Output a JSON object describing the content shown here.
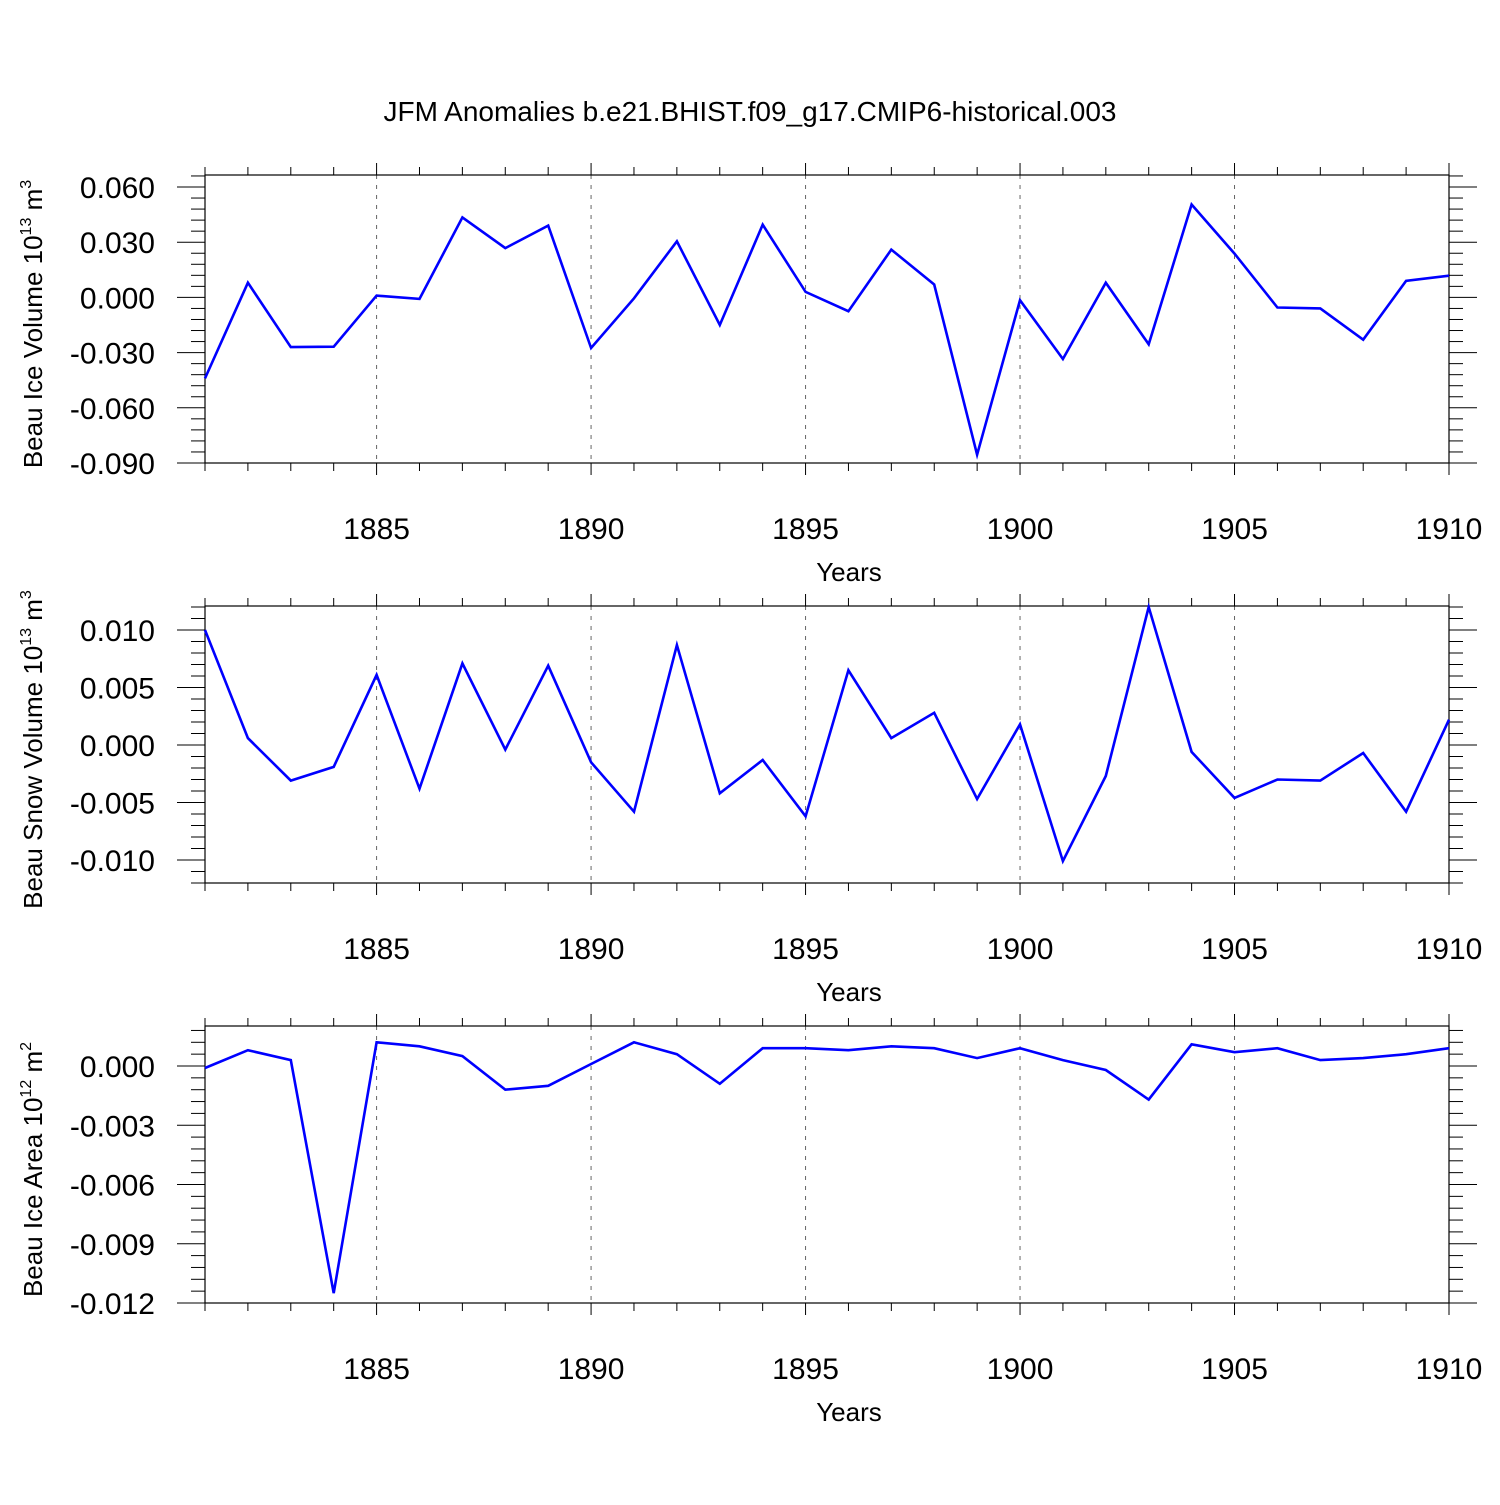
{
  "title": "JFM Anomalies b.e21.BHIST.f09_g17.CMIP6-historical.003",
  "colors": {
    "line": "#0000ff",
    "axis": "#000000",
    "grid": "#666666"
  },
  "chart_data": [
    {
      "type": "line",
      "ylabel_main": "Beau Ice Volume 10",
      "ylabel_sup1": "13",
      "ylabel_mid": " m",
      "ylabel_sup2": "3",
      "xlabel": "Years",
      "xlim": [
        1881,
        1910
      ],
      "ylim": [
        -0.09,
        0.072
      ],
      "yticks": [
        -0.09,
        -0.06,
        -0.03,
        0.0,
        0.03,
        0.06
      ],
      "ytick_labels": [
        "-0.090",
        "-0.060",
        "-0.030",
        "0.000",
        "0.030",
        "0.060"
      ],
      "xticks": [
        1885,
        1890,
        1895,
        1900,
        1905,
        1910
      ],
      "xtick_labels": [
        "1885",
        "1890",
        "1895",
        "1900",
        "1905",
        "1910"
      ],
      "x": [
        1881,
        1882,
        1883,
        1884,
        1885,
        1886,
        1887,
        1888,
        1889,
        1890,
        1891,
        1892,
        1893,
        1894,
        1895,
        1896,
        1897,
        1898,
        1899,
        1900,
        1901,
        1902,
        1903,
        1904,
        1905,
        1906,
        1907,
        1908,
        1909,
        1910
      ],
      "series": [
        {
          "name": "Beau Ice Volume",
          "values": [
            -0.044,
            0.008,
            -0.027,
            -0.0268,
            0.001,
            -0.0008,
            0.0435,
            0.0268,
            0.039,
            -0.0275,
            -0.0005,
            0.0305,
            -0.015,
            0.0395,
            0.003,
            -0.0075,
            0.026,
            0.007,
            -0.0855,
            -0.0015,
            -0.0335,
            0.008,
            -0.0255,
            0.0505,
            0.0238,
            -0.0055,
            -0.006,
            -0.023,
            0.009,
            0.0118
          ]
        }
      ]
    },
    {
      "type": "line",
      "ylabel_main": "Beau Snow Volume 10",
      "ylabel_sup1": "13",
      "ylabel_mid": " m",
      "ylabel_sup2": "3",
      "xlabel": "Years",
      "xlim": [
        1881,
        1910
      ],
      "ylim": [
        -0.012,
        0.012
      ],
      "yticks": [
        -0.01,
        -0.005,
        0.0,
        0.005,
        0.01
      ],
      "ytick_labels": [
        "-0.010",
        "-0.005",
        "0.000",
        "0.005",
        "0.010"
      ],
      "xticks": [
        1885,
        1890,
        1895,
        1900,
        1905,
        1910
      ],
      "xtick_labels": [
        "1885",
        "1890",
        "1895",
        "1900",
        "1905",
        "1910"
      ],
      "x": [
        1881,
        1882,
        1883,
        1884,
        1885,
        1886,
        1887,
        1888,
        1889,
        1890,
        1891,
        1892,
        1893,
        1894,
        1895,
        1896,
        1897,
        1898,
        1899,
        1900,
        1901,
        1902,
        1903,
        1904,
        1905,
        1906,
        1907,
        1908,
        1909,
        1910
      ],
      "series": [
        {
          "name": "Beau Snow Volume",
          "values": [
            0.01,
            0.0006,
            -0.0031,
            -0.0019,
            0.0061,
            -0.0038,
            0.0071,
            -0.0004,
            0.0069,
            -0.0015,
            -0.0058,
            0.0087,
            -0.0042,
            -0.0013,
            -0.0062,
            0.0065,
            0.0006,
            0.0028,
            -0.0047,
            0.0018,
            -0.0101,
            -0.0027,
            0.012,
            -0.0006,
            -0.0046,
            -0.003,
            -0.0031,
            -0.0007,
            -0.0058,
            0.0022
          ]
        }
      ]
    },
    {
      "type": "line",
      "ylabel_main": "Beau Ice Area 10",
      "ylabel_sup1": "12",
      "ylabel_mid": " m",
      "ylabel_sup2": "2",
      "xlabel": "Years",
      "xlim": [
        1881,
        1910
      ],
      "ylim": [
        -0.012,
        0.002
      ],
      "yticks": [
        -0.012,
        -0.009,
        -0.006,
        -0.003,
        0.0
      ],
      "ytick_labels": [
        "-0.012",
        "-0.009",
        "-0.006",
        "-0.003",
        "0.000"
      ],
      "xticks": [
        1885,
        1890,
        1895,
        1900,
        1905,
        1910
      ],
      "xtick_labels": [
        "1885",
        "1890",
        "1895",
        "1900",
        "1905",
        "1910"
      ],
      "x": [
        1881,
        1882,
        1883,
        1884,
        1885,
        1886,
        1887,
        1888,
        1889,
        1890,
        1891,
        1892,
        1893,
        1894,
        1895,
        1896,
        1897,
        1898,
        1899,
        1900,
        1901,
        1902,
        1903,
        1904,
        1905,
        1906,
        1907,
        1908,
        1909,
        1910
      ],
      "series": [
        {
          "name": "Beau Ice Area",
          "values": [
            -0.0001,
            0.0008,
            0.0003,
            -0.0115,
            0.0012,
            0.001,
            0.0005,
            -0.0012,
            -0.001,
            0.0001,
            0.0012,
            0.0006,
            -0.0009,
            0.0009,
            0.0009,
            0.0008,
            0.001,
            0.0009,
            0.0004,
            0.0009,
            0.0003,
            -0.0002,
            -0.0017,
            0.0011,
            0.0007,
            0.0009,
            0.0003,
            0.0004,
            0.0006,
            0.0009
          ]
        }
      ]
    }
  ]
}
